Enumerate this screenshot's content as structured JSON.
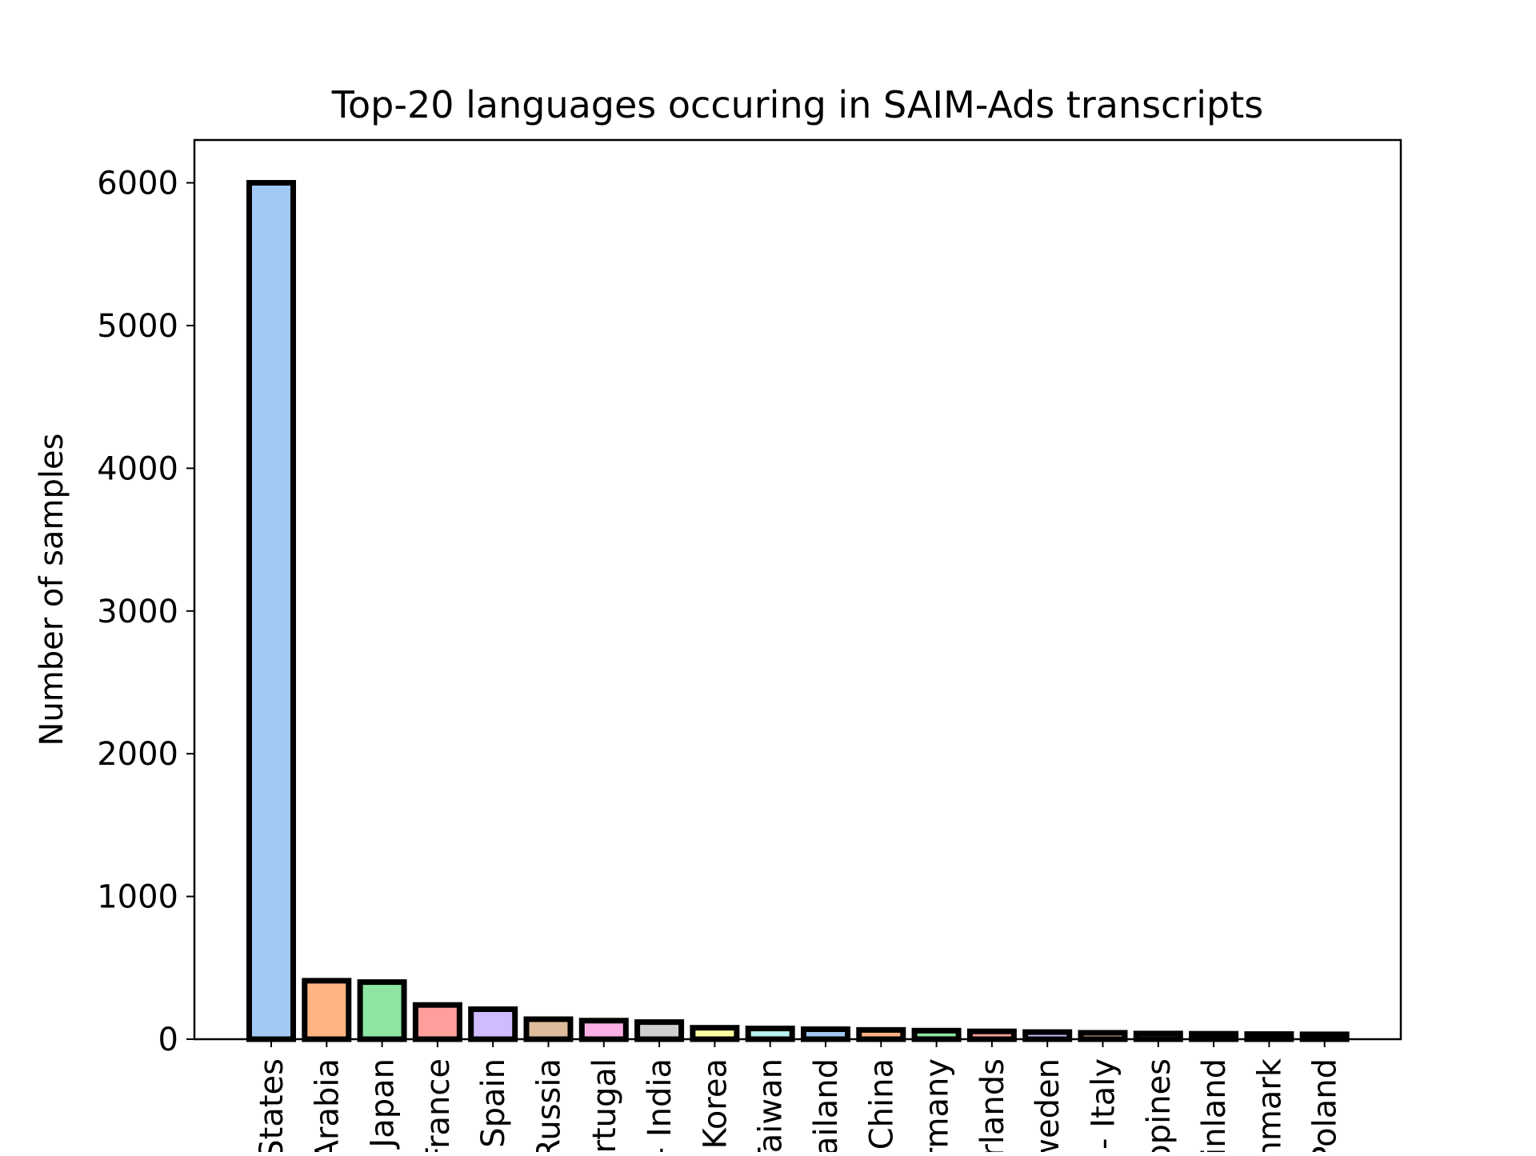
{
  "chart_data": {
    "type": "bar",
    "title": "Top-20 languages occuring in SAIM-Ads transcripts",
    "xlabel": "",
    "ylabel": "Number of samples",
    "ylim": [
      0,
      6300
    ],
    "yticks": [
      0,
      1000,
      2000,
      3000,
      4000,
      5000,
      6000
    ],
    "grid": false,
    "legend": "none",
    "categories": [
      "States",
      "Arabia",
      "Japan",
      "France",
      "Spain",
      "Russia",
      "ortugal",
      "- India",
      "Korea",
      "Taiwan",
      "ailand",
      "China",
      "rmany",
      "rlands",
      "weden",
      "- Italy",
      "ppines",
      "inland",
      "nmark",
      "Poland"
    ],
    "values": [
      6000,
      410,
      400,
      240,
      210,
      140,
      130,
      120,
      80,
      75,
      70,
      65,
      60,
      55,
      50,
      45,
      40,
      38,
      36,
      34
    ],
    "colors": [
      "#a1c9f4",
      "#ffb482",
      "#8de5a1",
      "#ff9f9b",
      "#d0bbff",
      "#debb9b",
      "#fab0e4",
      "#cfcfcf",
      "#fffea3",
      "#b9f2f0",
      "#a1c9f4",
      "#ffb482",
      "#8de5a1",
      "#ff9f9b",
      "#d0bbff",
      "#debb9b",
      "#fab0e4",
      "#cfcfcf",
      "#fffea3",
      "#b9f2f0"
    ],
    "edge_color": "#000000"
  }
}
